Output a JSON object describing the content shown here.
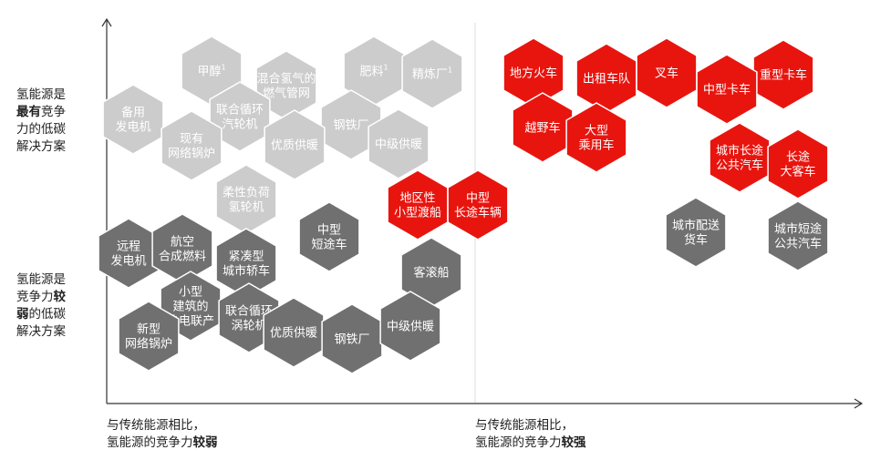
{
  "colors": {
    "light": "#cccccc",
    "dark": "#707070",
    "red": "#e8150f",
    "axis": "#333333",
    "divider": "#dddddd"
  },
  "y_axis_labels": {
    "top": {
      "line1": "氢能源是",
      "line2_bold": "最有",
      "line2_rest": "竞争",
      "line3": "力的低碳",
      "line4": "解决方案"
    },
    "bottom": {
      "line1": "氢能源是",
      "line2_rest": "竞争力",
      "line2_bold": "较",
      "line3_bold": "弱",
      "line3_rest": "的低碳",
      "line4": "解决方案"
    }
  },
  "x_axis_labels": {
    "left": {
      "line1": "与传统能源相比，",
      "line2_rest": "氢能源的竞争力",
      "line2_bold": "较弱"
    },
    "right": {
      "line1": "与传统能源相比，",
      "line2_rest": "氢能源的竞争力",
      "line2_bold": "较强"
    }
  },
  "hexagons": [
    {
      "id": "methanol",
      "lines": [
        "甲醇"
      ],
      "sup": "1",
      "tone": "light"
    },
    {
      "id": "blended-gas",
      "lines": [
        "混合氢气的",
        "燃气管网"
      ],
      "tone": "light"
    },
    {
      "id": "fertilizer",
      "lines": [
        "肥料"
      ],
      "sup": "1",
      "tone": "light"
    },
    {
      "id": "refinery",
      "lines": [
        "精炼厂"
      ],
      "sup": "1",
      "tone": "light"
    },
    {
      "id": "backup-gen",
      "lines": [
        "备用",
        "发电机"
      ],
      "tone": "light"
    },
    {
      "id": "ccgt-light",
      "lines": [
        "联合循环",
        "汽轮机"
      ],
      "tone": "light"
    },
    {
      "id": "steel-light",
      "lines": [
        "钢铁厂"
      ],
      "tone": "light"
    },
    {
      "id": "existing-boiler",
      "lines": [
        "现有",
        "网络锅炉"
      ],
      "tone": "light"
    },
    {
      "id": "quality-heat-light",
      "lines": [
        "优质供暖"
      ],
      "tone": "light"
    },
    {
      "id": "mid-heat-light",
      "lines": [
        "中级供暖"
      ],
      "tone": "light"
    },
    {
      "id": "flex-turbine",
      "lines": [
        "柔性负荷",
        "氢轮机"
      ],
      "tone": "light"
    },
    {
      "id": "regional-ferry",
      "lines": [
        "地区性",
        "小型渡船"
      ],
      "tone": "red"
    },
    {
      "id": "mid-long-vehicle",
      "lines": [
        "中型",
        "长途车辆"
      ],
      "tone": "red"
    },
    {
      "id": "mid-short-truck",
      "lines": [
        "中型",
        "短途车"
      ],
      "tone": "dark"
    },
    {
      "id": "remote-gen",
      "lines": [
        "远程",
        "发电机"
      ],
      "tone": "dark"
    },
    {
      "id": "aviation-fuel",
      "lines": [
        "航空",
        "合成燃料"
      ],
      "tone": "dark"
    },
    {
      "id": "compact-bus",
      "lines": [
        "紧凑型",
        "城市轿车"
      ],
      "tone": "dark"
    },
    {
      "id": "passenger-ship",
      "lines": [
        "客滚船"
      ],
      "tone": "dark"
    },
    {
      "id": "small-chp",
      "lines": [
        "小型",
        "建筑的",
        "热电联产"
      ],
      "tone": "dark"
    },
    {
      "id": "new-boiler",
      "lines": [
        "新型",
        "网络锅炉"
      ],
      "tone": "dark"
    },
    {
      "id": "ccgt-dark",
      "lines": [
        "联合循环",
        "涡轮机"
      ],
      "tone": "dark"
    },
    {
      "id": "quality-heat-dark",
      "lines": [
        "优质供暖"
      ],
      "tone": "dark"
    },
    {
      "id": "steel-dark",
      "lines": [
        "钢铁厂"
      ],
      "tone": "dark"
    },
    {
      "id": "mid-heat-dark",
      "lines": [
        "中级供暖"
      ],
      "tone": "dark"
    },
    {
      "id": "regional-train",
      "lines": [
        "地方火车"
      ],
      "tone": "red"
    },
    {
      "id": "taxi-fleet",
      "lines": [
        "出租车队"
      ],
      "tone": "red"
    },
    {
      "id": "forklift",
      "lines": [
        "叉车"
      ],
      "tone": "red"
    },
    {
      "id": "heavy-truck",
      "lines": [
        "重型卡车"
      ],
      "tone": "red"
    },
    {
      "id": "mid-truck",
      "lines": [
        "中型卡车"
      ],
      "tone": "red"
    },
    {
      "id": "suv",
      "lines": [
        "越野车"
      ],
      "tone": "red"
    },
    {
      "id": "large-car",
      "lines": [
        "大型",
        "乘用车"
      ],
      "tone": "red"
    },
    {
      "id": "city-long-bus",
      "lines": [
        "城市长途",
        "公共汽车"
      ],
      "tone": "red"
    },
    {
      "id": "long-coach",
      "lines": [
        "长途",
        "大客车"
      ],
      "tone": "red"
    },
    {
      "id": "city-delivery",
      "lines": [
        "城市配送",
        "货车"
      ],
      "tone": "dark"
    },
    {
      "id": "city-short-bus",
      "lines": [
        "城市短途",
        "公共汽车"
      ],
      "tone": "dark"
    }
  ]
}
